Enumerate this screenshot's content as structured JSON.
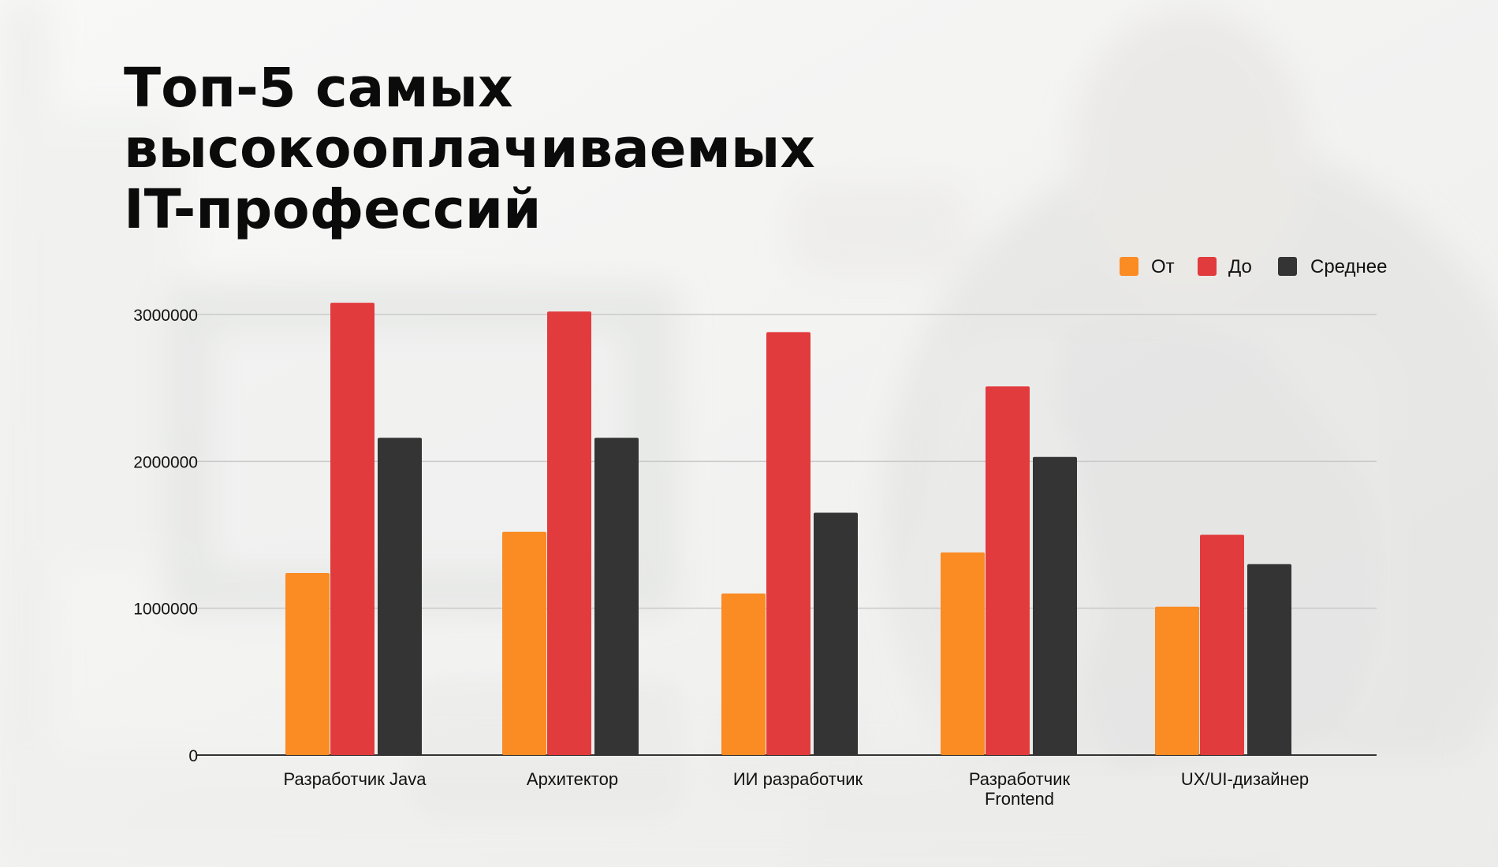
{
  "title": {
    "line1": "Топ-5 самых",
    "line2": "высокооплачиваемых",
    "line3": "IT-профессий"
  },
  "colors": {
    "from": "#fb8b23",
    "to": "#e23b3d",
    "avg": "#343434"
  },
  "chart_data": {
    "type": "bar",
    "title": "Топ-5 самых высокооплачиваемых IT-профессий",
    "xlabel": "",
    "ylabel": "",
    "ylim": [
      0,
      3000000
    ],
    "yticks": [
      0,
      1000000,
      2000000,
      3000000
    ],
    "grid": true,
    "legend_position": "top-right",
    "categories": [
      "Разработчик Java",
      "Архитектор",
      "ИИ разработчик",
      "Разработчик Frontend",
      "UX/UI-дизайнер"
    ],
    "series": [
      {
        "name": "От",
        "color": "#fb8b23",
        "values": [
          1240000,
          1520000,
          1100000,
          1380000,
          1010000
        ]
      },
      {
        "name": "До",
        "color": "#e23b3d",
        "values": [
          3080000,
          3020000,
          2880000,
          2510000,
          1500000
        ]
      },
      {
        "name": "Среднее",
        "color": "#343434",
        "values": [
          2160000,
          2160000,
          1650000,
          2030000,
          1300000
        ]
      }
    ]
  }
}
